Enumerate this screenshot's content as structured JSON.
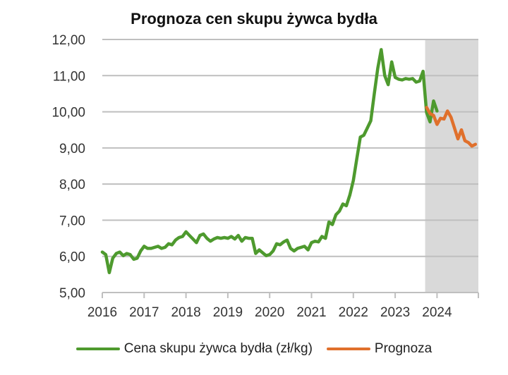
{
  "title": "Prognoza cen skupu żywca bydła",
  "legend": {
    "items": [
      {
        "label": "Cena skupu żywca bydła (zł/kg)",
        "color": "#4e9a2e"
      },
      {
        "label": "Prognoza",
        "color": "#e0702c"
      }
    ]
  },
  "axes": {
    "y_ticks": [
      "12,00",
      "11,00",
      "10,00",
      "9,00",
      "8,00",
      "7,00",
      "6,00",
      "5,00"
    ],
    "x_ticks": [
      "2016",
      "2017",
      "2018",
      "2019",
      "2020",
      "2021",
      "2022",
      "2023",
      "2024"
    ]
  },
  "chart_data": {
    "type": "line",
    "title": "Prognoza cen skupu żywca bydła",
    "xlabel": "",
    "ylabel": "",
    "ylim": [
      5.0,
      12.0
    ],
    "y_tick_step": 1.0,
    "xlim": [
      "2016-01",
      "2024-12"
    ],
    "x_tick_labels": [
      "2016",
      "2017",
      "2018",
      "2019",
      "2020",
      "2021",
      "2022",
      "2023",
      "2024"
    ],
    "grid": "horizontal",
    "legend_position": "bottom",
    "shaded_region": {
      "from": "2023-10",
      "to": "2024-12",
      "color": "#d9d9d9",
      "meaning": "forecast period"
    },
    "series": [
      {
        "name": "Cena skupu żywca bydła (zł/kg)",
        "color": "#4e9a2e",
        "start": "2016-01",
        "frequency": "monthly",
        "values": [
          6.12,
          6.05,
          5.55,
          5.95,
          6.08,
          6.12,
          6.02,
          6.08,
          6.05,
          5.92,
          5.95,
          6.15,
          6.28,
          6.22,
          6.22,
          6.25,
          6.28,
          6.22,
          6.25,
          6.35,
          6.32,
          6.45,
          6.52,
          6.55,
          6.68,
          6.58,
          6.48,
          6.38,
          6.58,
          6.62,
          6.5,
          6.42,
          6.48,
          6.52,
          6.5,
          6.52,
          6.5,
          6.55,
          6.48,
          6.58,
          6.42,
          6.52,
          6.5,
          6.5,
          6.08,
          6.18,
          6.1,
          6.02,
          6.05,
          6.15,
          6.35,
          6.32,
          6.4,
          6.45,
          6.22,
          6.15,
          6.22,
          6.25,
          6.28,
          6.18,
          6.38,
          6.42,
          6.4,
          6.55,
          6.5,
          6.95,
          6.88,
          7.15,
          7.25,
          7.45,
          7.4,
          7.7,
          8.1,
          8.7,
          9.3,
          9.35,
          9.55,
          9.75,
          10.5,
          11.2,
          11.72,
          11.0,
          10.75,
          11.38,
          10.95,
          10.9,
          10.88,
          10.92,
          10.9,
          10.92,
          10.82,
          10.85,
          11.12,
          9.98,
          9.72,
          10.3,
          10.02
        ]
      },
      {
        "name": "Prognoza",
        "color": "#e0702c",
        "start": "2023-10",
        "frequency": "monthly",
        "values": [
          10.12,
          9.95,
          9.9,
          9.65,
          9.82,
          9.8,
          10.02,
          9.85,
          9.55,
          9.25,
          9.5,
          9.2,
          9.15,
          9.05,
          9.1
        ]
      }
    ]
  }
}
